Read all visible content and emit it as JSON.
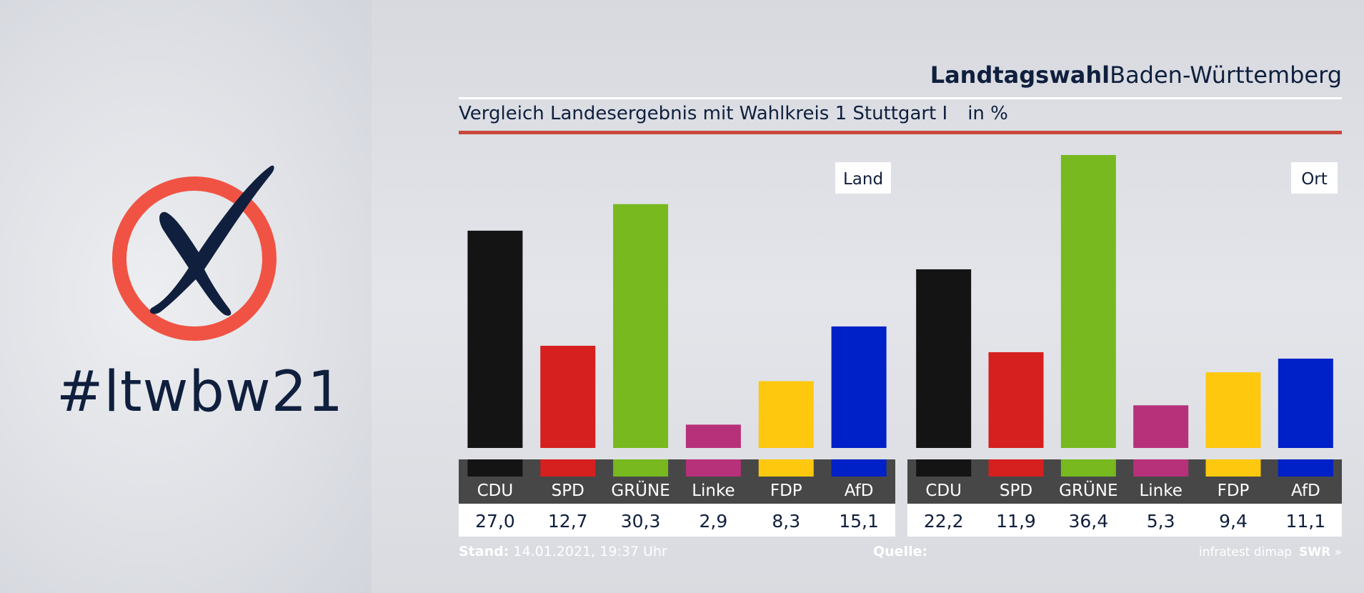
{
  "hashtag": "#ltwbw21",
  "header": {
    "title_bold": "Landtagswahl",
    "title_regular": "Baden-Württemberg",
    "subtitle": "Vergleich Landesergebnis mit Wahlkreis 1 Stuttgart I",
    "unit": "in %"
  },
  "footer": {
    "stand_label": "Stand:",
    "stand_value": "14.01.2021, 19:37 Uhr",
    "quelle_label": "Quelle:",
    "source": "infratest dimap",
    "broadcaster": "SWR"
  },
  "colors": {
    "logo_circle": "#f05343",
    "logo_cross": "#0f1f3d",
    "rule_red": "#c8473c",
    "label_strip": "#474747"
  },
  "chart_data": [
    {
      "type": "bar",
      "title": "Land",
      "categories": [
        "CDU",
        "SPD",
        "GRÜNE",
        "Linke",
        "FDP",
        "AfD"
      ],
      "values": [
        27.0,
        12.7,
        30.3,
        2.9,
        8.3,
        15.1
      ],
      "value_labels": [
        "27,0",
        "12,7",
        "30,3",
        "2,9",
        "8,3",
        "15,1"
      ],
      "colors": [
        "#141414",
        "#d61f1f",
        "#77b91f",
        "#b7307a",
        "#fec80e",
        "#0020c8"
      ],
      "ylim": [
        0,
        36.4
      ]
    },
    {
      "type": "bar",
      "title": "Ort",
      "categories": [
        "CDU",
        "SPD",
        "GRÜNE",
        "Linke",
        "FDP",
        "AfD"
      ],
      "values": [
        22.2,
        11.9,
        36.4,
        5.3,
        9.4,
        11.1
      ],
      "value_labels": [
        "22,2",
        "11,9",
        "36,4",
        "5,3",
        "9,4",
        "11,1"
      ],
      "colors": [
        "#141414",
        "#d61f1f",
        "#77b91f",
        "#b7307a",
        "#fec80e",
        "#0020c8"
      ],
      "ylim": [
        0,
        36.4
      ]
    }
  ]
}
